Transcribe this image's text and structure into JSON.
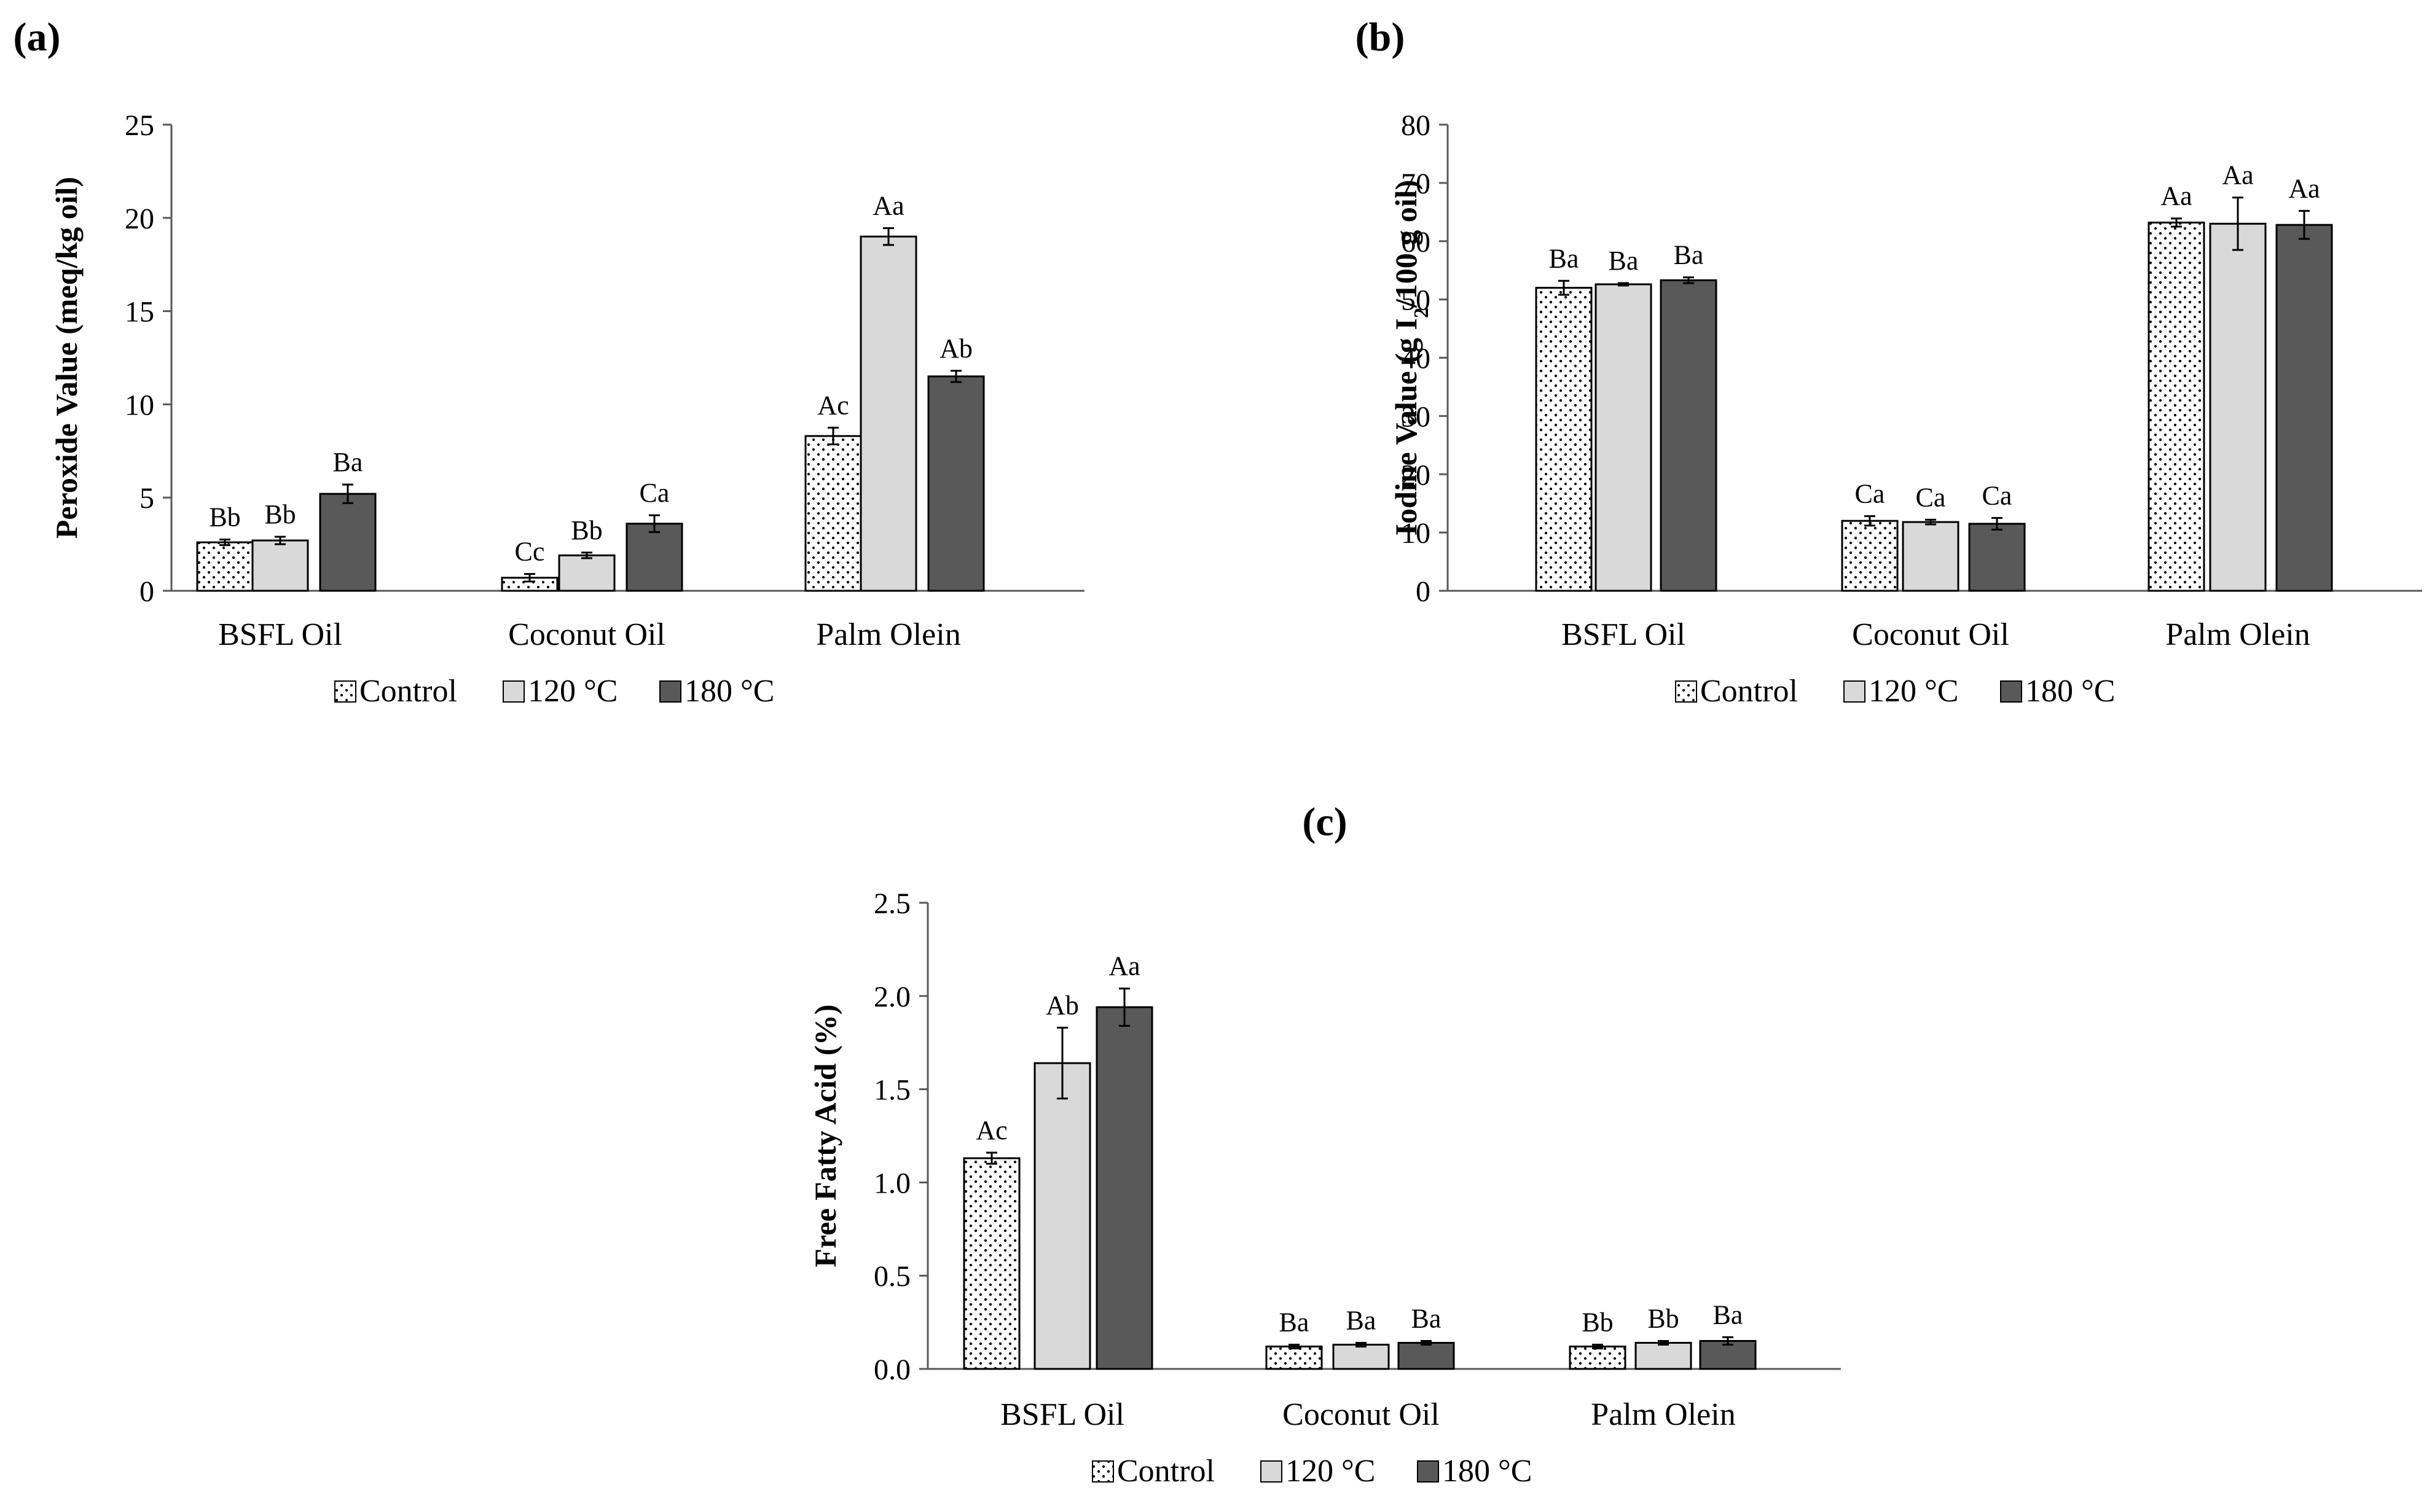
{
  "colors": {
    "control_fill": "#ffffff",
    "control_dots": "#000000",
    "c120_fill": "#d9d9d9",
    "c180_fill": "#595959",
    "axis": "#595959",
    "bar_stroke": "#000000"
  },
  "legend": [
    "Control",
    "120 °C",
    "180 °C"
  ],
  "chart_data": [
    {
      "panel": "(a)",
      "type": "bar",
      "ylabel": "Peroxide Value (meq/kg oil)",
      "ylim": [
        0,
        25
      ],
      "yticks": [
        0,
        5,
        10,
        15,
        20,
        25
      ],
      "ytick_labels": [
        "0",
        "5",
        "10",
        "15",
        "20",
        "25"
      ],
      "categories": [
        "BSFL Oil",
        "Coconut Oil",
        "Palm Olein"
      ],
      "series": [
        {
          "name": "Control",
          "values": [
            2.6,
            0.7,
            8.3
          ],
          "errors": [
            0.15,
            0.2,
            0.45
          ],
          "labels": [
            "Bb",
            "Cc",
            "Ac"
          ]
        },
        {
          "name": "120 °C",
          "values": [
            2.7,
            1.9,
            19.0
          ],
          "errors": [
            0.2,
            0.15,
            0.45
          ],
          "labels": [
            "Bb",
            "Bb",
            "Aa"
          ]
        },
        {
          "name": "180 °C",
          "values": [
            5.2,
            3.6,
            11.5
          ],
          "errors": [
            0.5,
            0.45,
            0.3
          ],
          "labels": [
            "Ba",
            "Ca",
            "Ab"
          ]
        }
      ]
    },
    {
      "panel": "(b)",
      "type": "bar",
      "ylabel": "Iodine Value (g I2/100 g oil)",
      "ylabel_parts": [
        "Iodine Value (g I",
        "2",
        "/100 g oil)"
      ],
      "ylim": [
        0,
        80
      ],
      "yticks": [
        0,
        10,
        20,
        30,
        40,
        50,
        60,
        70,
        80
      ],
      "ytick_labels": [
        "0",
        "10",
        "20",
        "30",
        "40",
        "50",
        "60",
        "70",
        "80"
      ],
      "categories": [
        "BSFL Oil",
        "Coconut Oil",
        "Palm Olein"
      ],
      "series": [
        {
          "name": "Control",
          "values": [
            52.0,
            12.0,
            63.2
          ],
          "errors": [
            1.2,
            0.8,
            0.7
          ],
          "labels": [
            "Ba",
            "Ca",
            "Aa"
          ]
        },
        {
          "name": "120 °C",
          "values": [
            52.6,
            11.8,
            63.0
          ],
          "errors": [
            0.2,
            0.4,
            4.5
          ],
          "labels": [
            "Ba",
            "Ca",
            "Aa"
          ]
        },
        {
          "name": "180 °C",
          "values": [
            53.3,
            11.5,
            62.8
          ],
          "errors": [
            0.5,
            1.0,
            2.4
          ],
          "labels": [
            "Ba",
            "Ca",
            "Aa"
          ]
        }
      ]
    },
    {
      "panel": "(c)",
      "type": "bar",
      "ylabel": "Free Fatty Acid (%)",
      "ylim": [
        0,
        2.5
      ],
      "yticks": [
        0,
        0.5,
        1.0,
        1.5,
        2.0,
        2.5
      ],
      "ytick_labels": [
        "0.0",
        "0.5",
        "1.0",
        "1.5",
        "2.0",
        "2.5"
      ],
      "categories": [
        "BSFL Oil",
        "Coconut Oil",
        "Palm Olein"
      ],
      "series": [
        {
          "name": "Control",
          "values": [
            1.13,
            0.12,
            0.12
          ],
          "errors": [
            0.03,
            0.01,
            0.01
          ],
          "labels": [
            "Ac",
            "Ba",
            "Bb"
          ]
        },
        {
          "name": "120 °C",
          "values": [
            1.64,
            0.13,
            0.14
          ],
          "errors": [
            0.19,
            0.01,
            0.01
          ],
          "labels": [
            "Ab",
            "Ba",
            "Bb"
          ]
        },
        {
          "name": "180 °C",
          "values": [
            1.94,
            0.14,
            0.15
          ],
          "errors": [
            0.1,
            0.01,
            0.02
          ],
          "labels": [
            "Aa",
            "Ba",
            "Ba"
          ]
        }
      ]
    }
  ]
}
